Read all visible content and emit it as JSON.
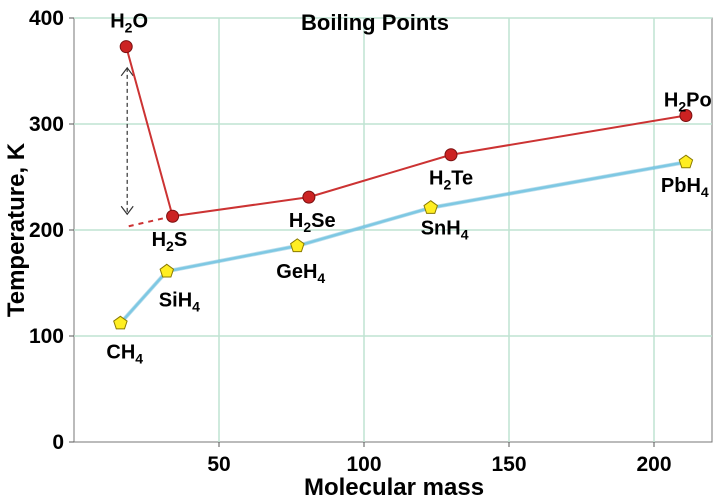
{
  "chart_data": {
    "type": "line",
    "title": "Boiling Points",
    "xlabel": "Molecular mass",
    "ylabel": "Temperature, K",
    "xlim": [
      0,
      220
    ],
    "ylim": [
      0,
      400
    ],
    "x_ticks": [
      50,
      100,
      150,
      200
    ],
    "y_ticks": [
      0,
      100,
      200,
      300,
      400
    ],
    "grid": true,
    "series": [
      {
        "name": "",
        "color": "#cc3333",
        "marker": "circle",
        "marker_color": "#cc2222",
        "points": [
          {
            "label_main": "H",
            "label_sub": "2",
            "label_tail": "O",
            "x": 18,
            "y": 373
          },
          {
            "label_main": "H",
            "label_sub": "2",
            "label_tail": "S",
            "x": 34,
            "y": 213
          },
          {
            "label_main": "H",
            "label_sub": "2",
            "label_tail": "Se",
            "x": 81,
            "y": 231
          },
          {
            "label_main": "H",
            "label_sub": "2",
            "label_tail": "Te",
            "x": 130,
            "y": 271
          },
          {
            "label_main": "H",
            "label_sub": "2",
            "label_tail": "Po",
            "x": 211,
            "y": 308
          }
        ]
      },
      {
        "name": "",
        "color": "#7ec8e3",
        "marker": "pentagon",
        "marker_color": "#ffee22",
        "points": [
          {
            "label_main": "CH",
            "label_sub": "4",
            "label_tail": "",
            "x": 16,
            "y": 112
          },
          {
            "label_main": "SiH",
            "label_sub": "4",
            "label_tail": "",
            "x": 32,
            "y": 161
          },
          {
            "label_main": "GeH",
            "label_sub": "4",
            "label_tail": "",
            "x": 77,
            "y": 185
          },
          {
            "label_main": "SnH",
            "label_sub": "4",
            "label_tail": "",
            "x": 123,
            "y": 221
          },
          {
            "label_main": "PbH",
            "label_sub": "4",
            "label_tail": "",
            "x": 211,
            "y": 264
          }
        ]
      }
    ],
    "extrapolation": {
      "from": {
        "x": 34,
        "y": 213
      },
      "to": {
        "x": 18,
        "y": 203
      }
    },
    "arrow": {
      "x": 18,
      "y_top": 353,
      "y_bottom": 213
    }
  }
}
